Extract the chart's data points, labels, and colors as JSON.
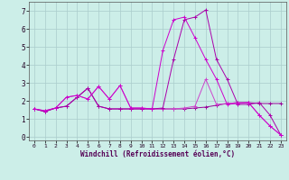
{
  "xlabel": "Windchill (Refroidissement éolien,°C)",
  "background_color": "#cceee8",
  "grid_color": "#aacccc",
  "xlim": [
    -0.5,
    23.5
  ],
  "ylim": [
    -0.2,
    7.5
  ],
  "xticks": [
    0,
    1,
    2,
    3,
    4,
    5,
    6,
    7,
    8,
    9,
    10,
    11,
    12,
    13,
    14,
    15,
    16,
    17,
    18,
    19,
    20,
    21,
    22,
    23
  ],
  "yticks": [
    0,
    1,
    2,
    3,
    4,
    5,
    6,
    7
  ],
  "series": [
    {
      "color": "#990099",
      "y": [
        1.55,
        1.4,
        1.6,
        1.7,
        2.2,
        2.7,
        1.7,
        1.55,
        1.55,
        1.55,
        1.55,
        1.55,
        1.55,
        1.55,
        1.55,
        1.6,
        1.65,
        1.75,
        1.85,
        1.9,
        1.9,
        1.85,
        1.85,
        1.85
      ]
    },
    {
      "color": "#cc44cc",
      "y": [
        1.55,
        1.45,
        1.6,
        2.2,
        2.3,
        2.1,
        2.8,
        2.1,
        2.85,
        1.6,
        1.6,
        1.55,
        1.55,
        1.55,
        1.6,
        1.7,
        3.2,
        1.8,
        1.85,
        1.9,
        1.9,
        1.2,
        0.6,
        0.1
      ]
    },
    {
      "color": "#aa00aa",
      "y": [
        1.55,
        1.4,
        1.6,
        1.7,
        2.2,
        2.7,
        1.7,
        1.55,
        1.55,
        1.55,
        1.55,
        1.55,
        1.6,
        4.3,
        6.5,
        6.65,
        7.05,
        4.3,
        3.2,
        1.8,
        1.8,
        1.9,
        1.2,
        0.1
      ]
    },
    {
      "color": "#cc00cc",
      "y": [
        1.55,
        1.45,
        1.6,
        2.2,
        2.3,
        2.1,
        2.8,
        2.1,
        2.85,
        1.6,
        1.6,
        1.55,
        4.8,
        6.5,
        6.65,
        5.5,
        4.3,
        3.2,
        1.8,
        1.85,
        1.9,
        1.2,
        0.6,
        0.1
      ]
    }
  ]
}
